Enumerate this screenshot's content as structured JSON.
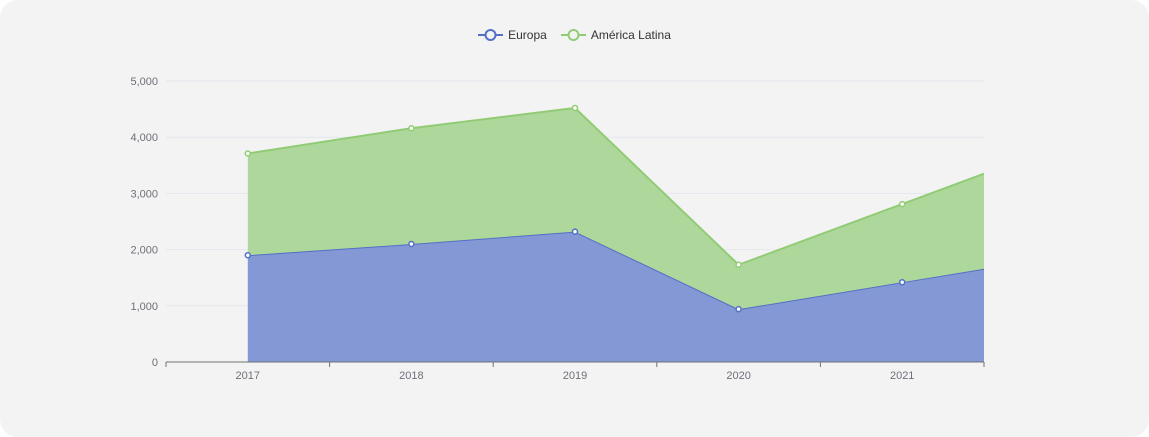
{
  "chart_data": {
    "type": "area",
    "stacked": true,
    "categories": [
      "2017",
      "2018",
      "2019",
      "2020",
      "2021"
    ],
    "series": [
      {
        "name": "Europa",
        "values": [
          1900,
          2100,
          2320,
          940,
          1420
        ],
        "color": "#5470c6",
        "fill": "#8398d4"
      },
      {
        "name": "América Latina",
        "values": [
          1810,
          2060,
          2200,
          790,
          1390
        ],
        "color": "#91cc75",
        "fill": "#aed79c"
      }
    ],
    "ylim": [
      0,
      5000
    ],
    "y_ticks": [
      "0",
      "1,000",
      "2,000",
      "3,000",
      "4,000",
      "5,000"
    ],
    "grid": true,
    "legend": "top-center",
    "title": "",
    "xlabel": "",
    "ylabel": ""
  },
  "colors": {
    "background": "#f3f3f3",
    "grid": "#e3e6ee",
    "axis": "#6e7079"
  }
}
